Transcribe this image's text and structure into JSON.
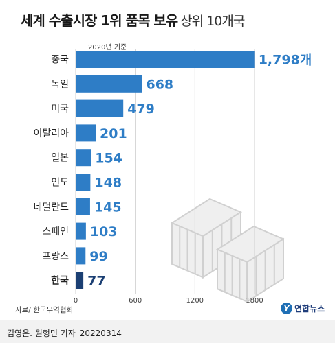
{
  "header": {
    "title_main": "세계 수출시장 1위 품목 보유",
    "title_sub": "상위 10개국",
    "basis_note": "2020년 기준"
  },
  "chart_data": {
    "type": "bar",
    "orientation": "horizontal",
    "title": "세계 수출시장 1위 품목 보유 상위 10개국",
    "categories": [
      "중국",
      "독일",
      "미국",
      "이탈리아",
      "일본",
      "인도",
      "네덜란드",
      "스페인",
      "프랑스",
      "한국"
    ],
    "values": [
      1798,
      668,
      479,
      201,
      154,
      148,
      145,
      103,
      99,
      77
    ],
    "value_labels": [
      "1,798개",
      "668",
      "479",
      "201",
      "154",
      "148",
      "145",
      "103",
      "99",
      "77"
    ],
    "highlight_category": "한국",
    "xlim": [
      0,
      1900
    ],
    "xticks": [
      0,
      600,
      1200,
      1800
    ],
    "xtick_labels": [
      "0",
      "600",
      "1200",
      "1800"
    ],
    "grid": true,
    "colors": {
      "bar": "#2e7dc6",
      "bar_highlight": "#1b3f73",
      "label": "#2e7dc6",
      "label_highlight": "#1b3f73"
    }
  },
  "footer": {
    "source": "자료/ 한국무역협회",
    "logo_mark": "Y",
    "logo_text": "연합뉴스",
    "credit": "김영은. 원형민 기자",
    "date": "20220314"
  }
}
